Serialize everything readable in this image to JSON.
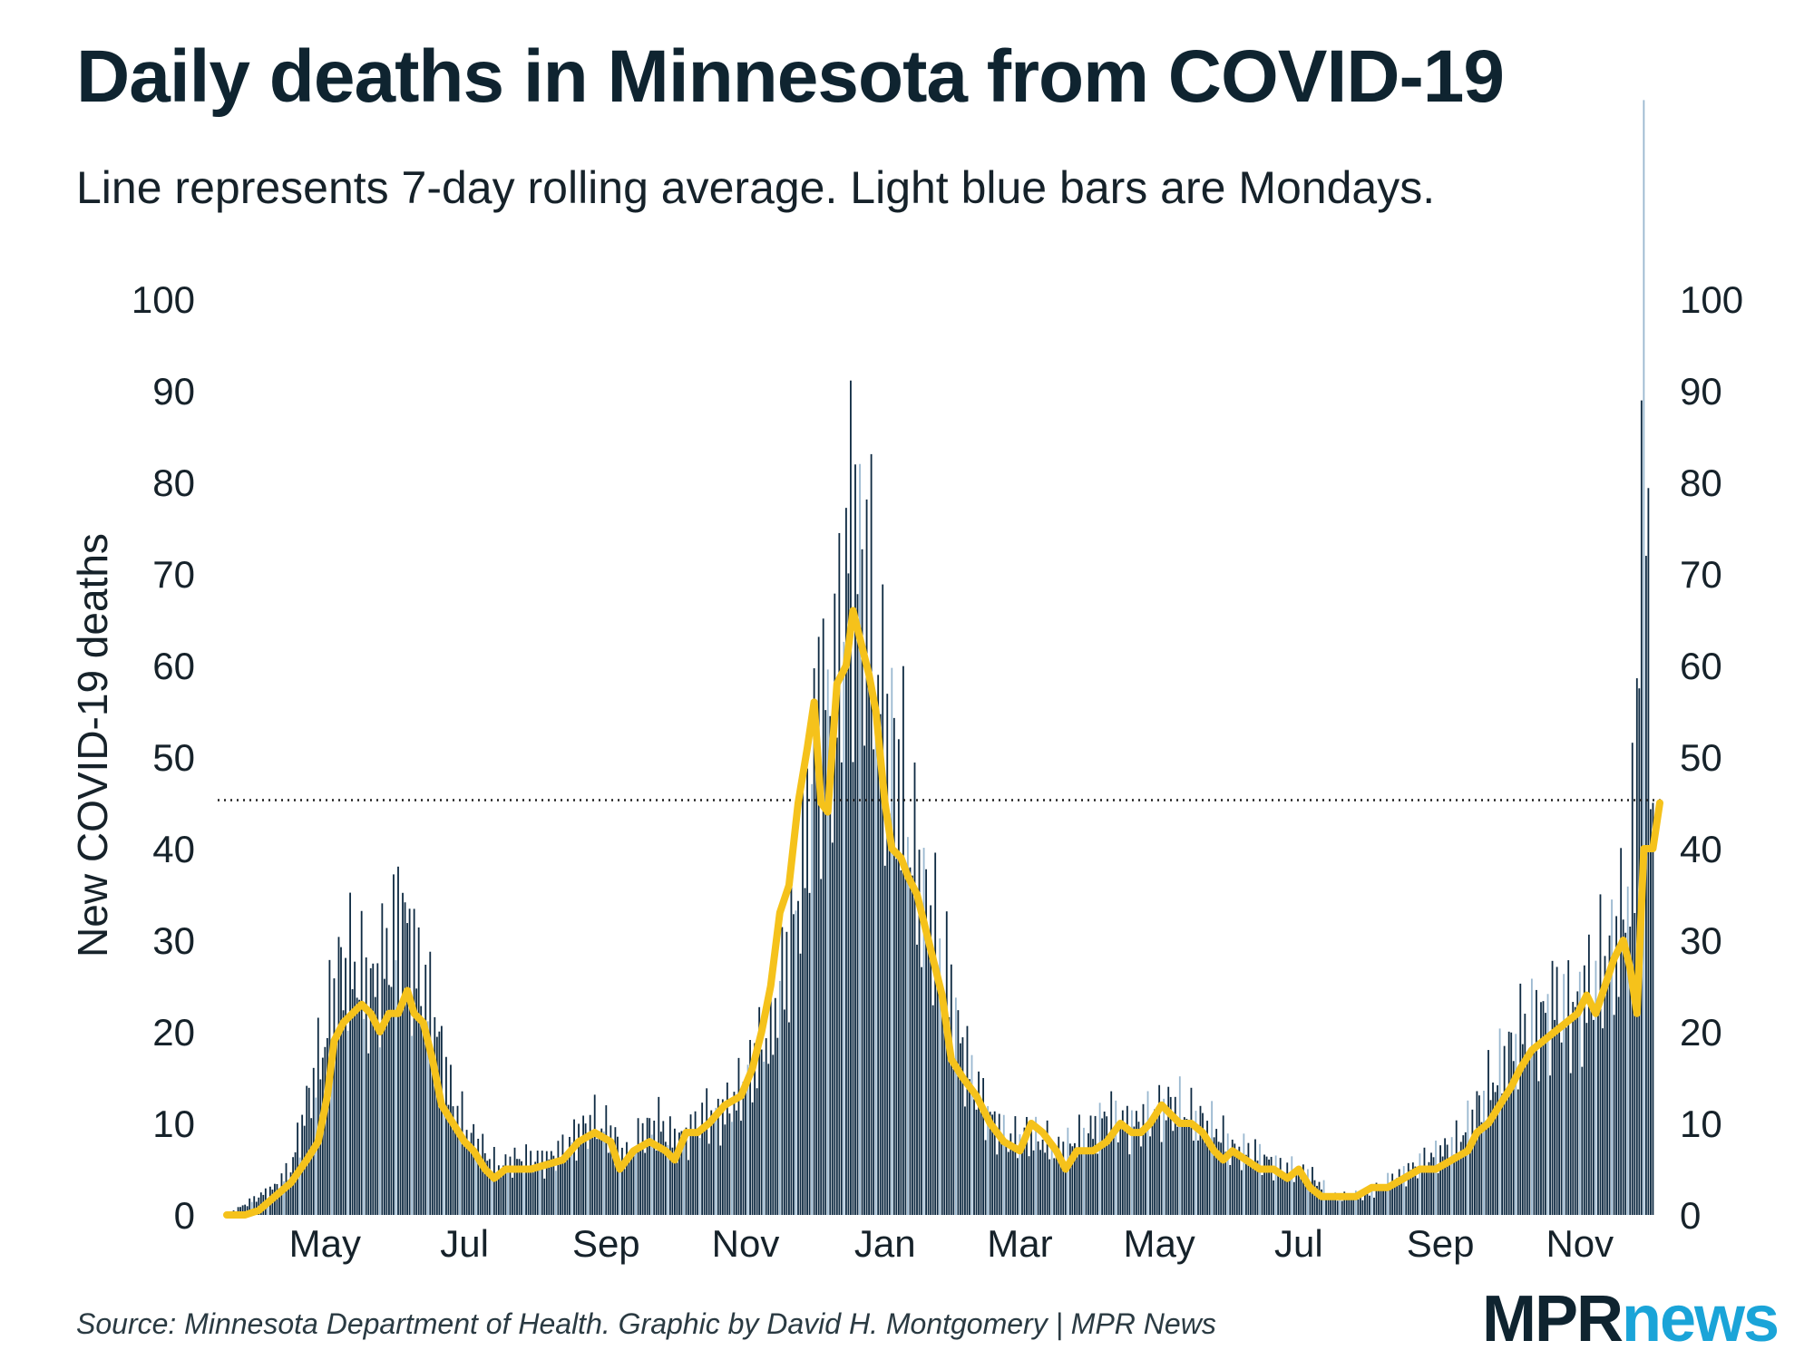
{
  "header": {
    "title": "Daily deaths in Minnesota from COVID-19",
    "subtitle": "Line represents 7-day rolling average. Light blue bars are Mondays."
  },
  "footer": {
    "source": "Source: Minnesota Department of Health. Graphic by David H. Montgomery | MPR News",
    "logo_mpr": "MPR",
    "logo_news": "news"
  },
  "colors": {
    "bar": "#0e2a42",
    "monday_bar": "#9ab8d0",
    "line": "#f5c21b",
    "text": "#0f2430",
    "reference_line": "#222222"
  },
  "chart_data": {
    "type": "bar",
    "title": "Daily deaths in Minnesota from COVID-19",
    "subtitle": "Line represents 7-day rolling average. Light blue bars are Mondays.",
    "ylabel": "New COVID-19 deaths",
    "ylim": [
      0,
      100
    ],
    "yticks": [
      0,
      10,
      20,
      30,
      40,
      50,
      60,
      70,
      80,
      90,
      100
    ],
    "y_axis_both_sides": true,
    "x_range": [
      "2020-03-19",
      "2021-12-06"
    ],
    "xticks": [
      {
        "date": "2020-05-01",
        "label": "May"
      },
      {
        "date": "2020-07-01",
        "label": "Jul"
      },
      {
        "date": "2020-09-01",
        "label": "Sep"
      },
      {
        "date": "2020-11-01",
        "label": "Nov"
      },
      {
        "date": "2021-01-01",
        "label": "Jan"
      },
      {
        "date": "2021-03-01",
        "label": "Mar"
      },
      {
        "date": "2021-05-01",
        "label": "May"
      },
      {
        "date": "2021-07-01",
        "label": "Jul"
      },
      {
        "date": "2021-09-01",
        "label": "Sep"
      },
      {
        "date": "2021-11-01",
        "label": "Nov"
      }
    ],
    "reference_line": {
      "y": 45.3,
      "style": "dotted"
    },
    "series": [
      {
        "type": "bar",
        "note": "daily deaths, approximate (Monday bars shown light blue)",
        "points": [
          [
            "2020-03-19",
            0
          ],
          [
            "2020-03-26",
            1
          ],
          [
            "2020-04-02",
            2
          ],
          [
            "2020-04-09",
            3
          ],
          [
            "2020-04-16",
            5
          ],
          [
            "2020-04-23",
            12
          ],
          [
            "2020-04-30",
            18
          ],
          [
            "2020-05-07",
            26
          ],
          [
            "2020-05-14",
            27
          ],
          [
            "2020-05-21",
            24
          ],
          [
            "2020-05-28",
            28
          ],
          [
            "2020-06-04",
            33
          ],
          [
            "2020-06-11",
            26
          ],
          [
            "2020-06-18",
            21
          ],
          [
            "2020-06-25",
            13
          ],
          [
            "2020-07-02",
            9
          ],
          [
            "2020-07-09",
            7
          ],
          [
            "2020-07-16",
            5
          ],
          [
            "2020-07-23",
            6
          ],
          [
            "2020-07-30",
            6
          ],
          [
            "2020-08-06",
            6
          ],
          [
            "2020-08-13",
            7
          ],
          [
            "2020-08-20",
            9
          ],
          [
            "2020-08-27",
            10
          ],
          [
            "2020-09-03",
            9
          ],
          [
            "2020-09-10",
            6
          ],
          [
            "2020-09-17",
            9
          ],
          [
            "2020-09-24",
            10
          ],
          [
            "2020-10-01",
            8
          ],
          [
            "2020-10-08",
            9
          ],
          [
            "2020-10-15",
            11
          ],
          [
            "2020-10-22",
            11
          ],
          [
            "2020-10-29",
            13
          ],
          [
            "2020-11-05",
            17
          ],
          [
            "2020-11-12",
            20
          ],
          [
            "2020-11-19",
            28
          ],
          [
            "2020-11-26",
            38
          ],
          [
            "2020-12-03",
            55
          ],
          [
            "2020-12-10",
            55
          ],
          [
            "2020-12-17",
            75
          ],
          [
            "2020-12-24",
            68
          ],
          [
            "2020-12-31",
            54
          ],
          [
            "2021-01-07",
            48
          ],
          [
            "2021-01-14",
            38
          ],
          [
            "2021-01-21",
            32
          ],
          [
            "2021-01-28",
            26
          ],
          [
            "2021-02-04",
            18
          ],
          [
            "2021-02-11",
            13
          ],
          [
            "2021-02-18",
            10
          ],
          [
            "2021-02-25",
            8
          ],
          [
            "2021-03-04",
            9
          ],
          [
            "2021-03-11",
            8
          ],
          [
            "2021-03-18",
            7
          ],
          [
            "2021-03-25",
            8
          ],
          [
            "2021-04-01",
            9
          ],
          [
            "2021-04-08",
            11
          ],
          [
            "2021-04-15",
            10
          ],
          [
            "2021-04-22",
            10
          ],
          [
            "2021-04-29",
            11
          ],
          [
            "2021-05-06",
            12
          ],
          [
            "2021-05-13",
            11
          ],
          [
            "2021-05-20",
            10
          ],
          [
            "2021-05-27",
            9
          ],
          [
            "2021-06-03",
            7
          ],
          [
            "2021-06-10",
            7
          ],
          [
            "2021-06-17",
            6
          ],
          [
            "2021-06-24",
            5
          ],
          [
            "2021-07-01",
            5
          ],
          [
            "2021-07-08",
            4
          ],
          [
            "2021-07-15",
            2
          ],
          [
            "2021-07-22",
            2
          ],
          [
            "2021-07-29",
            2
          ],
          [
            "2021-08-05",
            3
          ],
          [
            "2021-08-12",
            4
          ],
          [
            "2021-08-19",
            5
          ],
          [
            "2021-08-26",
            6
          ],
          [
            "2021-09-02",
            7
          ],
          [
            "2021-09-09",
            8
          ],
          [
            "2021-09-16",
            11
          ],
          [
            "2021-09-23",
            14
          ],
          [
            "2021-09-30",
            17
          ],
          [
            "2021-10-07",
            20
          ],
          [
            "2021-10-14",
            21
          ],
          [
            "2021-10-21",
            23
          ],
          [
            "2021-10-28",
            22
          ],
          [
            "2021-11-04",
            24
          ],
          [
            "2021-11-11",
            27
          ],
          [
            "2021-11-18",
            30
          ],
          [
            "2021-11-25",
            40
          ],
          [
            "2021-11-29",
            100
          ],
          [
            "2021-12-01",
            72
          ],
          [
            "2021-12-02",
            62
          ],
          [
            "2021-12-03",
            45
          ]
        ]
      },
      {
        "type": "line",
        "note": "7-day rolling average, approximate",
        "points": [
          [
            "2020-03-19",
            0
          ],
          [
            "2020-03-27",
            0
          ],
          [
            "2020-04-02",
            0.5
          ],
          [
            "2020-04-09",
            2
          ],
          [
            "2020-04-16",
            3.5
          ],
          [
            "2020-04-23",
            6
          ],
          [
            "2020-04-28",
            8
          ],
          [
            "2020-05-02",
            13
          ],
          [
            "2020-05-05",
            19
          ],
          [
            "2020-05-09",
            21
          ],
          [
            "2020-05-13",
            22
          ],
          [
            "2020-05-17",
            23
          ],
          [
            "2020-05-21",
            22
          ],
          [
            "2020-05-25",
            20
          ],
          [
            "2020-05-29",
            22
          ],
          [
            "2020-06-02",
            22
          ],
          [
            "2020-06-06",
            24.5
          ],
          [
            "2020-06-09",
            22
          ],
          [
            "2020-06-13",
            21
          ],
          [
            "2020-06-17",
            17
          ],
          [
            "2020-06-21",
            12
          ],
          [
            "2020-06-26",
            10
          ],
          [
            "2020-07-01",
            8
          ],
          [
            "2020-07-05",
            7
          ],
          [
            "2020-07-10",
            5
          ],
          [
            "2020-07-14",
            4
          ],
          [
            "2020-07-19",
            5
          ],
          [
            "2020-07-24",
            5
          ],
          [
            "2020-07-30",
            5
          ],
          [
            "2020-08-06",
            5.5
          ],
          [
            "2020-08-13",
            6
          ],
          [
            "2020-08-20",
            8
          ],
          [
            "2020-08-27",
            9
          ],
          [
            "2020-09-03",
            8
          ],
          [
            "2020-09-07",
            5
          ],
          [
            "2020-09-13",
            7
          ],
          [
            "2020-09-20",
            8
          ],
          [
            "2020-09-27",
            7
          ],
          [
            "2020-10-01",
            6
          ],
          [
            "2020-10-06",
            9
          ],
          [
            "2020-10-11",
            9
          ],
          [
            "2020-10-16",
            10
          ],
          [
            "2020-10-23",
            12
          ],
          [
            "2020-10-30",
            13
          ],
          [
            "2020-11-04",
            16
          ],
          [
            "2020-11-08",
            20
          ],
          [
            "2020-11-12",
            25
          ],
          [
            "2020-11-16",
            33
          ],
          [
            "2020-11-20",
            36
          ],
          [
            "2020-11-24",
            45
          ],
          [
            "2020-11-28",
            51
          ],
          [
            "2020-12-01",
            56
          ],
          [
            "2020-12-04",
            45
          ],
          [
            "2020-12-07",
            44
          ],
          [
            "2020-12-11",
            58
          ],
          [
            "2020-12-15",
            60
          ],
          [
            "2020-12-18",
            66
          ],
          [
            "2020-12-21",
            63
          ],
          [
            "2020-12-25",
            59
          ],
          [
            "2020-12-28",
            55
          ],
          [
            "2021-01-01",
            45
          ],
          [
            "2021-01-04",
            40
          ],
          [
            "2021-01-08",
            39
          ],
          [
            "2021-01-11",
            37
          ],
          [
            "2021-01-15",
            35
          ],
          [
            "2021-01-20",
            30
          ],
          [
            "2021-01-26",
            24
          ],
          [
            "2021-01-30",
            17
          ],
          [
            "2021-02-04",
            15
          ],
          [
            "2021-02-10",
            13
          ],
          [
            "2021-02-16",
            10
          ],
          [
            "2021-02-22",
            8
          ],
          [
            "2021-03-01",
            7
          ],
          [
            "2021-03-06",
            10
          ],
          [
            "2021-03-11",
            9
          ],
          [
            "2021-03-17",
            7
          ],
          [
            "2021-03-21",
            5
          ],
          [
            "2021-03-26",
            7
          ],
          [
            "2021-04-02",
            7
          ],
          [
            "2021-04-08",
            8
          ],
          [
            "2021-04-14",
            10
          ],
          [
            "2021-04-19",
            9
          ],
          [
            "2021-04-23",
            9
          ],
          [
            "2021-04-27",
            10
          ],
          [
            "2021-05-02",
            12
          ],
          [
            "2021-05-06",
            11
          ],
          [
            "2021-05-10",
            10
          ],
          [
            "2021-05-15",
            10
          ],
          [
            "2021-05-20",
            9
          ],
          [
            "2021-05-25",
            7
          ],
          [
            "2021-05-29",
            6
          ],
          [
            "2021-06-02",
            7
          ],
          [
            "2021-06-08",
            6
          ],
          [
            "2021-06-14",
            5
          ],
          [
            "2021-06-20",
            5
          ],
          [
            "2021-06-26",
            4
          ],
          [
            "2021-07-01",
            5
          ],
          [
            "2021-07-06",
            3
          ],
          [
            "2021-07-11",
            2
          ],
          [
            "2021-07-18",
            2
          ],
          [
            "2021-07-26",
            2
          ],
          [
            "2021-08-02",
            3
          ],
          [
            "2021-08-09",
            3
          ],
          [
            "2021-08-16",
            4
          ],
          [
            "2021-08-23",
            5
          ],
          [
            "2021-08-30",
            5
          ],
          [
            "2021-09-06",
            6
          ],
          [
            "2021-09-13",
            7
          ],
          [
            "2021-09-17",
            9
          ],
          [
            "2021-09-22",
            10
          ],
          [
            "2021-09-27",
            12
          ],
          [
            "2021-10-02",
            14
          ],
          [
            "2021-10-06",
            16
          ],
          [
            "2021-10-11",
            18
          ],
          [
            "2021-10-16",
            19
          ],
          [
            "2021-10-21",
            20
          ],
          [
            "2021-10-26",
            21
          ],
          [
            "2021-10-31",
            22
          ],
          [
            "2021-11-04",
            24
          ],
          [
            "2021-11-08",
            22
          ],
          [
            "2021-11-12",
            25
          ],
          [
            "2021-11-16",
            28
          ],
          [
            "2021-11-20",
            30
          ],
          [
            "2021-11-23",
            27
          ],
          [
            "2021-11-26",
            22
          ],
          [
            "2021-11-29",
            40
          ],
          [
            "2021-12-03",
            40
          ],
          [
            "2021-12-06",
            45
          ]
        ]
      }
    ]
  }
}
